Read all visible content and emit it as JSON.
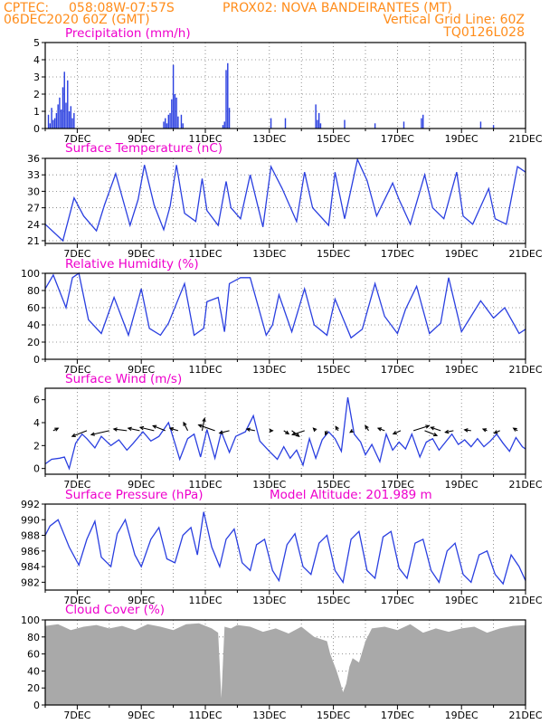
{
  "header": {
    "org": "CPTEC:",
    "location": "058:08W-07:57S",
    "station": "PROX02: NOVA BANDEIRANTES (MT)",
    "init_time": "06DEC2020 60Z (GMT)",
    "grid_note": "Vertical Grid Line: 60Z",
    "run_code": "TQ0126L028"
  },
  "colors": {
    "header": "#ff8c1a",
    "titles": "#ee00cc",
    "series": "#2a3fe0",
    "cloud": "#a9a9a9",
    "arrows": "#000000"
  },
  "x_axis": {
    "start_day": 6,
    "end_day": 21,
    "labels": [
      "7DEC",
      "9DEC",
      "11DEC",
      "13DEC",
      "15DEC",
      "17DEC",
      "19DEC",
      "21DEC"
    ]
  },
  "chart_data": [
    {
      "id": "precip",
      "type": "bar",
      "title": "Precipitation (mm/h)",
      "ylim": [
        0,
        5
      ],
      "yticks": [
        0,
        1,
        2,
        3,
        4,
        5
      ],
      "grid": true,
      "x": [
        6.1,
        6.15,
        6.2,
        6.25,
        6.3,
        6.35,
        6.4,
        6.45,
        6.5,
        6.55,
        6.6,
        6.65,
        6.7,
        6.75,
        6.8,
        6.85,
        6.9,
        9.7,
        9.75,
        9.8,
        9.85,
        9.9,
        9.95,
        10.0,
        10.05,
        10.1,
        10.15,
        10.25,
        10.3,
        11.55,
        11.6,
        11.65,
        11.7,
        11.75,
        13.05,
        13.5,
        14.45,
        14.5,
        14.55,
        14.6,
        15.35,
        16.3,
        17.2,
        17.75,
        17.8,
        19.6,
        20.0
      ],
      "y": [
        0.8,
        0.3,
        1.2,
        0.5,
        0.6,
        0.9,
        1.4,
        1.8,
        1.1,
        2.4,
        3.3,
        1.5,
        2.8,
        1.0,
        1.3,
        0.6,
        0.9,
        0.4,
        0.6,
        0.3,
        0.8,
        0.9,
        1.7,
        3.7,
        2.0,
        1.8,
        0.7,
        0.8,
        0.3,
        0.2,
        0.4,
        3.4,
        3.8,
        1.2,
        0.6,
        0.6,
        1.4,
        0.5,
        0.9,
        0.3,
        0.5,
        0.3,
        0.4,
        0.6,
        0.8,
        0.4,
        0.2
      ]
    },
    {
      "id": "temp",
      "type": "line",
      "title": "Surface Temperature (nC)",
      "ylim": [
        20.5,
        36
      ],
      "yticks": [
        21,
        24,
        27,
        30,
        33,
        36
      ],
      "grid": true,
      "x": [
        6.0,
        6.55,
        6.9,
        7.2,
        7.6,
        7.85,
        8.2,
        8.65,
        8.9,
        9.1,
        9.4,
        9.7,
        9.9,
        10.1,
        10.35,
        10.7,
        10.9,
        11.05,
        11.4,
        11.65,
        11.8,
        12.1,
        12.4,
        12.8,
        13.05,
        13.4,
        13.85,
        14.1,
        14.35,
        14.85,
        15.05,
        15.35,
        15.75,
        16.05,
        16.35,
        16.85,
        17.05,
        17.4,
        17.85,
        18.1,
        18.45,
        18.85,
        19.05,
        19.35,
        19.85,
        20.05,
        20.4,
        20.75,
        21.0
      ],
      "y": [
        24.0,
        21.0,
        28.8,
        25.5,
        22.8,
        27.5,
        33.2,
        23.8,
        28.5,
        34.8,
        27.5,
        23.0,
        27.3,
        34.8,
        26.0,
        24.5,
        32.3,
        26.5,
        23.8,
        31.8,
        27.0,
        25.0,
        33.0,
        23.5,
        34.5,
        30.5,
        24.5,
        33.5,
        27.0,
        23.8,
        33.5,
        25.0,
        35.8,
        32.0,
        25.5,
        31.5,
        28.5,
        24.0,
        33.0,
        27.0,
        25.0,
        33.5,
        25.5,
        24.0,
        30.5,
        25.0,
        24.0,
        34.5,
        33.5
      ]
    },
    {
      "id": "rh",
      "type": "line",
      "title": "Relative Humidity (%)",
      "ylim": [
        0,
        100
      ],
      "yticks": [
        0,
        20,
        40,
        60,
        80,
        100
      ],
      "grid": true,
      "x": [
        6.0,
        6.25,
        6.65,
        6.85,
        7.05,
        7.35,
        7.75,
        8.15,
        8.6,
        9.0,
        9.25,
        9.6,
        9.85,
        10.35,
        10.65,
        10.95,
        11.05,
        11.4,
        11.6,
        11.75,
        12.1,
        12.4,
        12.9,
        13.1,
        13.3,
        13.7,
        14.1,
        14.4,
        14.8,
        15.05,
        15.55,
        15.9,
        16.3,
        16.6,
        17.0,
        17.25,
        17.6,
        18.0,
        18.35,
        18.6,
        19.0,
        19.3,
        19.6,
        20.0,
        20.35,
        20.8,
        21.0
      ],
      "y": [
        82,
        98,
        60,
        95,
        100,
        46,
        30,
        72,
        28,
        82,
        36,
        28,
        42,
        88,
        28,
        36,
        67,
        72,
        32,
        88,
        95,
        95,
        28,
        40,
        75,
        32,
        82,
        40,
        28,
        70,
        25,
        35,
        88,
        50,
        30,
        58,
        85,
        30,
        42,
        95,
        32,
        50,
        68,
        48,
        60,
        30,
        35
      ]
    },
    {
      "id": "wind",
      "type": "line",
      "title": "Surface Wind (m/s)",
      "ylim": [
        -0.5,
        7
      ],
      "yticks": [
        0,
        2,
        4,
        6
      ],
      "grid": false,
      "x": [
        6.0,
        6.2,
        6.45,
        6.6,
        6.75,
        6.95,
        7.15,
        7.3,
        7.55,
        7.75,
        8.05,
        8.3,
        8.55,
        8.75,
        9.05,
        9.3,
        9.55,
        9.85,
        10.05,
        10.2,
        10.45,
        10.65,
        10.85,
        11.05,
        11.3,
        11.5,
        11.75,
        11.95,
        12.25,
        12.5,
        12.7,
        13.0,
        13.25,
        13.45,
        13.65,
        13.85,
        14.05,
        14.25,
        14.45,
        14.65,
        14.85,
        15.05,
        15.25,
        15.45,
        15.65,
        15.85,
        16.0,
        16.2,
        16.45,
        16.65,
        16.85,
        17.05,
        17.25,
        17.45,
        17.7,
        17.9,
        18.1,
        18.3,
        18.5,
        18.7,
        18.9,
        19.1,
        19.3,
        19.5,
        19.7,
        19.9,
        20.1,
        20.3,
        20.5,
        20.7,
        20.9,
        21.0
      ],
      "y": [
        0.4,
        0.8,
        0.9,
        1.0,
        0.0,
        2.2,
        3.0,
        2.6,
        1.8,
        2.8,
        2.0,
        2.5,
        1.6,
        2.2,
        3.2,
        2.4,
        2.8,
        4.0,
        2.2,
        0.8,
        2.6,
        3.0,
        1.0,
        3.4,
        0.9,
        3.2,
        1.4,
        2.8,
        3.2,
        4.6,
        2.4,
        1.5,
        0.8,
        1.9,
        0.9,
        1.6,
        0.3,
        2.6,
        0.9,
        2.5,
        3.2,
        2.6,
        1.5,
        6.2,
        3.0,
        2.3,
        1.2,
        2.1,
        0.6,
        3.0,
        1.6,
        2.3,
        1.7,
        3.0,
        1.0,
        2.3,
        2.6,
        1.6,
        2.3,
        3.0,
        2.1,
        2.5,
        1.9,
        2.6,
        1.9,
        2.4,
        3.0,
        2.2,
        1.5,
        2.7,
        1.9,
        1.7
      ],
      "arrow_x": [
        6.25,
        7.3,
        8.0,
        8.55,
        8.95,
        9.4,
        9.75,
        10.15,
        10.45,
        10.9,
        11.3,
        11.75,
        12.55,
        13.0,
        13.45,
        13.7,
        14.1,
        14.45,
        14.8,
        15.15,
        15.6,
        16.1,
        16.6,
        17.1,
        17.5,
        17.85,
        18.35,
        18.75,
        19.3,
        19.8,
        20.2,
        20.75
      ],
      "arrow_u": [
        0.6,
        -1.8,
        -2.2,
        -1.6,
        -1.4,
        -1.7,
        -1.5,
        -1.0,
        -0.5,
        0.3,
        -2.0,
        -1.2,
        -1.0,
        0.4,
        0.6,
        0.9,
        -1.5,
        -0.3,
        -0.2,
        -0.3,
        -0.3,
        -0.4,
        -0.8,
        -0.9,
        1.9,
        1.5,
        -1.2,
        -1.0,
        -0.8,
        -0.5,
        -0.7,
        -0.5
      ],
      "arrow_v": [
        0.3,
        -0.7,
        -0.5,
        0.2,
        0.3,
        0.4,
        0.6,
        0.3,
        1.0,
        1.5,
        0.7,
        -0.3,
        0.2,
        0.0,
        -0.4,
        -0.7,
        -0.5,
        0.3,
        -0.5,
        0.5,
        -0.2,
        0.6,
        0.3,
        -0.4,
        0.6,
        -0.6,
        0.4,
        -0.2,
        0.1,
        0.2,
        -0.3,
        0.3
      ]
    },
    {
      "id": "pressure",
      "type": "line",
      "title": "Surface Pressure (hPa)",
      "annotation": "Model Altitude: 201.989 m",
      "ylim": [
        981,
        992
      ],
      "yticks": [
        982,
        984,
        986,
        988,
        990,
        992
      ],
      "grid": false,
      "x": [
        6.0,
        6.15,
        6.4,
        6.75,
        7.05,
        7.3,
        7.55,
        7.75,
        8.05,
        8.25,
        8.5,
        8.8,
        9.0,
        9.3,
        9.55,
        9.8,
        10.05,
        10.3,
        10.55,
        10.75,
        10.95,
        11.2,
        11.45,
        11.65,
        11.9,
        12.15,
        12.4,
        12.6,
        12.85,
        13.1,
        13.3,
        13.55,
        13.8,
        14.05,
        14.3,
        14.55,
        14.8,
        15.05,
        15.3,
        15.55,
        15.8,
        16.05,
        16.3,
        16.55,
        16.8,
        17.05,
        17.3,
        17.55,
        17.8,
        18.05,
        18.3,
        18.55,
        18.8,
        19.05,
        19.3,
        19.55,
        19.8,
        20.05,
        20.3,
        20.55,
        20.8,
        21.0
      ],
      "y": [
        988.0,
        989.2,
        990.0,
        986.5,
        984.2,
        987.5,
        989.8,
        985.2,
        984.0,
        988.2,
        990.0,
        985.5,
        984.0,
        987.5,
        989.0,
        985.0,
        984.5,
        988.0,
        989.0,
        985.5,
        991.0,
        986.5,
        984.0,
        987.5,
        988.8,
        984.5,
        983.5,
        986.8,
        987.5,
        983.5,
        982.2,
        986.8,
        988.2,
        984.0,
        983.0,
        987.0,
        988.0,
        983.5,
        982.0,
        987.5,
        988.5,
        983.5,
        982.5,
        987.8,
        988.5,
        983.8,
        982.5,
        987.0,
        987.5,
        983.5,
        982.0,
        986.0,
        987.0,
        983.0,
        982.0,
        985.5,
        986.0,
        983.0,
        981.8,
        985.5,
        984.0,
        982.2
      ]
    },
    {
      "id": "cloud",
      "type": "area",
      "title": "Cloud Cover (%)",
      "ylim": [
        0,
        100
      ],
      "yticks": [
        0,
        20,
        40,
        60,
        80,
        100
      ],
      "grid": true,
      "x": [
        6.0,
        6.4,
        6.8,
        7.2,
        7.6,
        8.0,
        8.4,
        8.8,
        9.2,
        9.6,
        10.0,
        10.4,
        10.8,
        11.2,
        11.4,
        11.5,
        11.6,
        11.8,
        12.0,
        12.4,
        12.8,
        13.2,
        13.6,
        14.0,
        14.4,
        14.8,
        14.9,
        15.0,
        15.1,
        15.2,
        15.3,
        15.4,
        15.5,
        15.6,
        15.8,
        16.0,
        16.2,
        16.6,
        17.0,
        17.4,
        17.8,
        18.2,
        18.6,
        19.0,
        19.4,
        19.8,
        20.2,
        20.6,
        21.0
      ],
      "y": [
        93,
        95,
        88,
        92,
        94,
        90,
        93,
        88,
        95,
        92,
        88,
        95,
        96,
        90,
        85,
        8,
        92,
        90,
        94,
        92,
        86,
        90,
        84,
        92,
        80,
        75,
        60,
        50,
        40,
        28,
        15,
        25,
        45,
        55,
        50,
        75,
        90,
        92,
        88,
        95,
        85,
        90,
        86,
        90,
        92,
        85,
        90,
        93,
        94
      ]
    }
  ]
}
